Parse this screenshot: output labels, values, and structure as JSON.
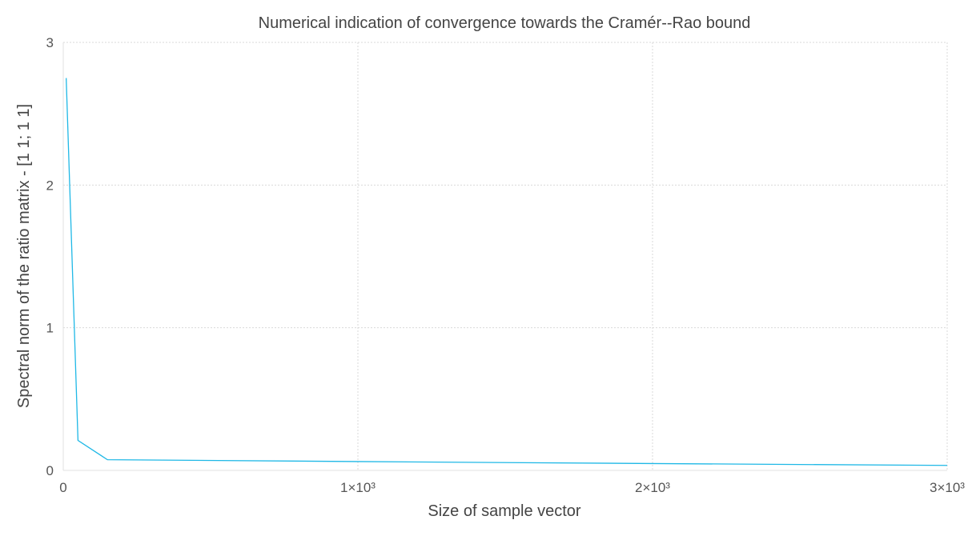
{
  "chart_data": {
    "type": "line",
    "title": "Numerical indication of convergence towards the Cramér--Rao bound",
    "xlabel": "Size of sample vector",
    "ylabel": "Spectral norm of the ratio matrix - [1 1; 1 1]",
    "xlim": [
      0,
      3000
    ],
    "ylim": [
      0,
      3
    ],
    "xticks": [
      {
        "value": 0,
        "label": "0"
      },
      {
        "value": 1000,
        "label": "1×10³"
      },
      {
        "value": 2000,
        "label": "2×10³"
      },
      {
        "value": 3000,
        "label": "3×10³"
      }
    ],
    "yticks": [
      {
        "value": 0,
        "label": "0"
      },
      {
        "value": 1,
        "label": "1"
      },
      {
        "value": 2,
        "label": "2"
      },
      {
        "value": 3,
        "label": "3"
      }
    ],
    "grid": true,
    "legend": "none",
    "series": [
      {
        "color": "#1fb8e6",
        "x": [
          10,
          50,
          150,
          1000,
          2000,
          3000
        ],
        "y": [
          2.75,
          0.21,
          0.075,
          0.062,
          0.048,
          0.035
        ]
      }
    ]
  }
}
